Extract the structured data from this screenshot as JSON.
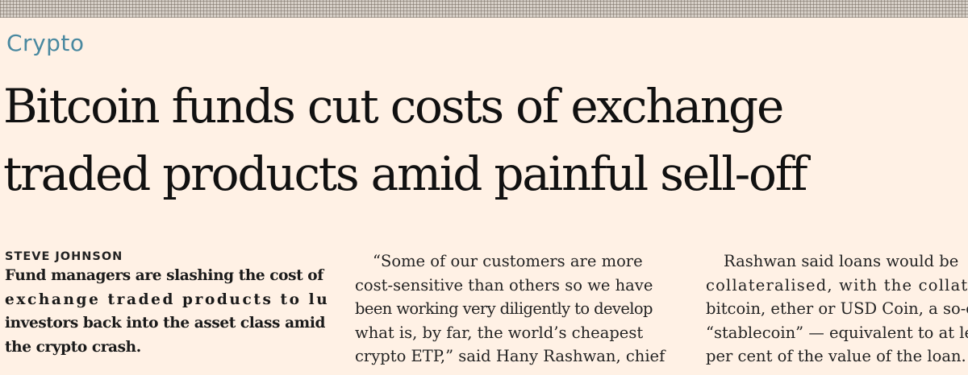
{
  "section": "Crypto",
  "headline": {
    "line1": "Bitcoin funds cut costs of exchange",
    "line2": "traded products amid painful sell-off"
  },
  "byline": "STEVE JOHNSON",
  "standfirst": {
    "line1": "Fund managers are slashing the cost of",
    "line2": "exchange traded products to lure",
    "line3": "investors back into the asset class amid",
    "line4": "the crypto crash."
  },
  "column2": {
    "line1": "“Some of our customers are more",
    "line2": "cost-sensitive than others so we have",
    "line3": "been working very diligently to develop",
    "line4": "what is, by far, the world’s cheapest",
    "line5": "crypto ETP,” said Hany Rashwan, chief"
  },
  "column3": {
    "line1": "Rashwan said loans would be",
    "line2": "collateralised, with the collateral in",
    "line3": "bitcoin, ether or USD Coin, a so-called",
    "line4": "“stablecoin” — equivalent to at least",
    "line5": "per cent of the value of the loan."
  }
}
